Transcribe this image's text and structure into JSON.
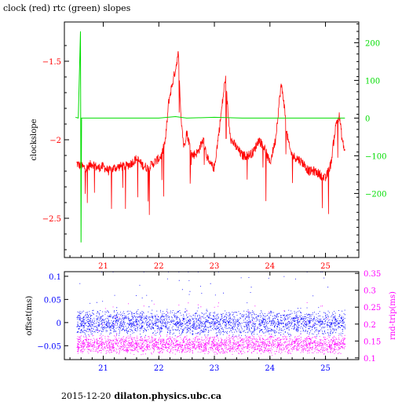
{
  "page": {
    "title": "clock (red) rtc (green) slopes",
    "footer_date": "2015-12-20",
    "footer_host": "dilaton.physics.ubc.ca"
  },
  "colors": {
    "clock": "#ff0000",
    "rtc": "#00dd00",
    "offset": "#0000ff",
    "rnd_trip": "#ff00ff",
    "frame": "#000000"
  },
  "chart_data": [
    {
      "type": "line",
      "ylabel": "clockslope",
      "y2label": "",
      "xlim": [
        20.3,
        25.6
      ],
      "ylim": [
        -2.75,
        -1.25
      ],
      "y2lim": [
        -370,
        255
      ],
      "x_ticks": [
        21,
        22,
        23,
        24,
        25
      ],
      "y_ticks": [
        -2.5,
        -2,
        -1.5
      ],
      "y2_ticks": [
        -200,
        -100,
        0,
        100,
        200
      ],
      "grid": false,
      "series": [
        {
          "name": "clock",
          "axis": "left",
          "x": [
            20.52,
            20.6,
            20.7,
            20.8,
            20.9,
            21.0,
            21.1,
            21.2,
            21.3,
            21.4,
            21.5,
            21.6,
            21.7,
            21.8,
            21.9,
            22.0,
            22.05,
            22.12,
            22.18,
            22.24,
            22.3,
            22.35,
            22.4,
            22.45,
            22.5,
            22.6,
            22.7,
            22.8,
            22.9,
            23.0,
            23.1,
            23.15,
            23.2,
            23.25,
            23.3,
            23.4,
            23.5,
            23.6,
            23.7,
            23.8,
            23.9,
            24.0,
            24.1,
            24.15,
            24.2,
            24.25,
            24.3,
            24.35,
            24.4,
            24.5,
            24.6,
            24.7,
            24.8,
            24.9,
            25.0,
            25.1,
            25.15,
            25.2,
            25.25,
            25.3,
            25.35
          ],
          "y": [
            -2.15,
            -2.17,
            -2.18,
            -2.15,
            -2.18,
            -2.17,
            -2.2,
            -2.18,
            -2.17,
            -2.17,
            -2.15,
            -2.12,
            -2.16,
            -2.18,
            -2.15,
            -2.12,
            -2.1,
            -2.0,
            -1.75,
            -1.65,
            -1.55,
            -1.45,
            -1.85,
            -2.05,
            -1.95,
            -2.1,
            -2.08,
            -2.0,
            -2.15,
            -2.18,
            -1.9,
            -1.75,
            -1.6,
            -1.85,
            -2.0,
            -2.05,
            -2.1,
            -2.1,
            -2.08,
            -2.0,
            -2.05,
            -2.15,
            -2.0,
            -1.82,
            -1.65,
            -1.75,
            -1.95,
            -2.05,
            -2.1,
            -2.12,
            -2.15,
            -2.2,
            -2.2,
            -2.22,
            -2.25,
            -2.15,
            -2.0,
            -1.88,
            -1.85,
            -2.0,
            -2.08
          ]
        },
        {
          "name": "rtc",
          "axis": "right",
          "x": [
            20.5,
            20.55,
            20.59,
            20.6,
            20.61,
            20.65,
            21.0,
            21.5,
            22.0,
            22.3,
            22.5,
            23.0,
            23.5,
            24.0,
            24.5,
            25.0,
            25.35
          ],
          "y": [
            2,
            0,
            230,
            -330,
            0,
            0,
            0,
            0,
            0,
            4,
            0,
            2,
            0,
            0,
            0,
            0,
            0
          ]
        }
      ]
    },
    {
      "type": "scatter",
      "ylabel": "offset(ms)",
      "y2label": "rnd-trip(ms)",
      "xlim": [
        20.3,
        25.6
      ],
      "ylim": [
        -0.08,
        0.11
      ],
      "y2lim": [
        0.095,
        0.355
      ],
      "x_ticks": [
        21,
        22,
        23,
        24,
        25
      ],
      "y_ticks": [
        -0.05,
        0,
        0.05,
        0.1
      ],
      "y2_ticks": [
        0.1,
        0.15,
        0.2,
        0.25,
        0.3,
        0.35
      ],
      "grid": false,
      "series": [
        {
          "name": "offset",
          "axis": "left",
          "x_range": [
            20.52,
            25.35
          ],
          "y_center": 0.0,
          "y_spread": 0.02
        },
        {
          "name": "rnd-trip",
          "axis": "right",
          "x_range": [
            20.52,
            25.35
          ],
          "y_center": 0.14,
          "y_spread": 0.02
        }
      ]
    }
  ]
}
